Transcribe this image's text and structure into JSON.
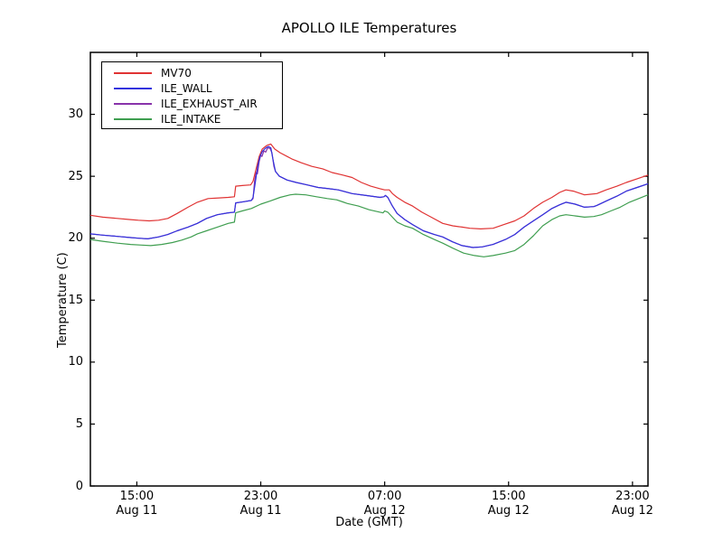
{
  "title": "APOLLO ILE Temperatures",
  "xlabel": "Date (GMT)",
  "ylabel": "Temperature (C)",
  "legend": {
    "items": [
      {
        "label": "MV70",
        "color": "#e03333"
      },
      {
        "label": "ILE_WALL",
        "color": "#3333dd"
      },
      {
        "label": "ILE_EXHAUST_AIR",
        "color": "#8833aa"
      },
      {
        "label": "ILE_INTAKE",
        "color": "#3f9e50"
      }
    ]
  },
  "chart_data": {
    "type": "line",
    "title": "APOLLO ILE Temperatures",
    "xlabel": "Date (GMT)",
    "ylabel": "Temperature (C)",
    "ylim": [
      0,
      35
    ],
    "yticks": [
      0,
      5,
      10,
      15,
      20,
      25,
      30
    ],
    "x_hours_range": [
      0,
      36
    ],
    "xticks": [
      {
        "t": 3,
        "time": "15:00",
        "date": "Aug 11"
      },
      {
        "t": 11,
        "time": "23:00",
        "date": "Aug 11"
      },
      {
        "t": 19,
        "time": "07:00",
        "date": "Aug 12"
      },
      {
        "t": 27,
        "time": "15:00",
        "date": "Aug 12"
      },
      {
        "t": 35,
        "time": "23:00",
        "date": "Aug 12"
      }
    ],
    "grid": false,
    "legend_position": "upper left",
    "series": [
      {
        "name": "MV70",
        "color": "#e03333",
        "points": [
          [
            0,
            21.85
          ],
          [
            0.8,
            21.7
          ],
          [
            1.75,
            21.6
          ],
          [
            2.6,
            21.5
          ],
          [
            3.1,
            21.45
          ],
          [
            3.8,
            21.4
          ],
          [
            4.4,
            21.45
          ],
          [
            5.0,
            21.6
          ],
          [
            5.6,
            22.0
          ],
          [
            6.3,
            22.5
          ],
          [
            6.9,
            22.9
          ],
          [
            7.6,
            23.2
          ],
          [
            8.3,
            23.25
          ],
          [
            8.9,
            23.3
          ],
          [
            9.3,
            23.35
          ],
          [
            9.38,
            24.2
          ],
          [
            9.8,
            24.25
          ],
          [
            10.35,
            24.3
          ],
          [
            10.5,
            24.6
          ],
          [
            10.7,
            25.6
          ],
          [
            10.9,
            26.6
          ],
          [
            11.1,
            27.2
          ],
          [
            11.4,
            27.5
          ],
          [
            11.65,
            27.6
          ],
          [
            11.9,
            27.2
          ],
          [
            12.25,
            26.9
          ],
          [
            12.7,
            26.6
          ],
          [
            13.0,
            26.4
          ],
          [
            13.6,
            26.1
          ],
          [
            14.3,
            25.8
          ],
          [
            15.0,
            25.6
          ],
          [
            15.6,
            25.3
          ],
          [
            16.3,
            25.1
          ],
          [
            16.9,
            24.9
          ],
          [
            17.5,
            24.5
          ],
          [
            18.1,
            24.2
          ],
          [
            18.7,
            24.0
          ],
          [
            19.0,
            23.9
          ],
          [
            19.3,
            23.9
          ],
          [
            19.5,
            23.6
          ],
          [
            19.8,
            23.3
          ],
          [
            20.3,
            22.9
          ],
          [
            20.8,
            22.6
          ],
          [
            21.4,
            22.1
          ],
          [
            22.0,
            21.7
          ],
          [
            22.75,
            21.2
          ],
          [
            23.4,
            21.0
          ],
          [
            24.0,
            20.9
          ],
          [
            24.5,
            20.8
          ],
          [
            25.2,
            20.75
          ],
          [
            26.0,
            20.8
          ],
          [
            26.7,
            21.1
          ],
          [
            27.4,
            21.4
          ],
          [
            28.0,
            21.8
          ],
          [
            28.6,
            22.4
          ],
          [
            29.2,
            22.9
          ],
          [
            29.8,
            23.3
          ],
          [
            30.3,
            23.7
          ],
          [
            30.7,
            23.9
          ],
          [
            31.2,
            23.8
          ],
          [
            31.9,
            23.5
          ],
          [
            32.3,
            23.55
          ],
          [
            32.7,
            23.6
          ],
          [
            33.3,
            23.9
          ],
          [
            34.0,
            24.2
          ],
          [
            34.6,
            24.5
          ],
          [
            35.3,
            24.8
          ],
          [
            36.0,
            25.1
          ]
        ]
      },
      {
        "name": "ILE_WALL",
        "color": "#3333dd",
        "points": [
          [
            0,
            20.35
          ],
          [
            0.8,
            20.25
          ],
          [
            1.75,
            20.15
          ],
          [
            2.6,
            20.05
          ],
          [
            3.1,
            20.0
          ],
          [
            3.7,
            19.95
          ],
          [
            4.4,
            20.1
          ],
          [
            5.0,
            20.3
          ],
          [
            5.6,
            20.6
          ],
          [
            6.3,
            20.9
          ],
          [
            6.9,
            21.2
          ],
          [
            7.5,
            21.6
          ],
          [
            8.2,
            21.9
          ],
          [
            8.9,
            22.05
          ],
          [
            9.3,
            22.1
          ],
          [
            9.38,
            22.85
          ],
          [
            9.9,
            22.95
          ],
          [
            10.4,
            23.05
          ],
          [
            10.5,
            23.3
          ],
          [
            10.65,
            24.5
          ],
          [
            10.8,
            25.8
          ],
          [
            10.95,
            26.6
          ],
          [
            11.1,
            27.0
          ],
          [
            11.25,
            27.2
          ],
          [
            11.4,
            27.35
          ],
          [
            11.5,
            27.4
          ],
          [
            11.65,
            27.3
          ],
          [
            11.8,
            26.3
          ],
          [
            11.95,
            25.4
          ],
          [
            12.2,
            25.0
          ],
          [
            12.7,
            24.7
          ],
          [
            13.3,
            24.5
          ],
          [
            14.0,
            24.3
          ],
          [
            14.7,
            24.1
          ],
          [
            15.4,
            24.0
          ],
          [
            16.0,
            23.9
          ],
          [
            16.9,
            23.6
          ],
          [
            17.8,
            23.45
          ],
          [
            18.7,
            23.3
          ],
          [
            18.95,
            23.35
          ],
          [
            19.05,
            23.45
          ],
          [
            19.2,
            23.3
          ],
          [
            19.5,
            22.6
          ],
          [
            19.8,
            22.0
          ],
          [
            20.3,
            21.5
          ],
          [
            20.8,
            21.1
          ],
          [
            21.5,
            20.6
          ],
          [
            22.2,
            20.3
          ],
          [
            22.75,
            20.1
          ],
          [
            23.4,
            19.7
          ],
          [
            24.0,
            19.4
          ],
          [
            24.7,
            19.25
          ],
          [
            25.3,
            19.3
          ],
          [
            26.0,
            19.5
          ],
          [
            26.8,
            19.9
          ],
          [
            27.4,
            20.3
          ],
          [
            28.0,
            20.9
          ],
          [
            28.6,
            21.4
          ],
          [
            29.2,
            21.9
          ],
          [
            29.8,
            22.4
          ],
          [
            30.3,
            22.7
          ],
          [
            30.7,
            22.9
          ],
          [
            31.3,
            22.75
          ],
          [
            31.9,
            22.5
          ],
          [
            32.5,
            22.55
          ],
          [
            32.7,
            22.65
          ],
          [
            33.3,
            23.0
          ],
          [
            34.0,
            23.4
          ],
          [
            34.6,
            23.8
          ],
          [
            35.3,
            24.1
          ],
          [
            36.0,
            24.4
          ]
        ]
      },
      {
        "name": "ILE_EXHAUST_AIR",
        "color": "#8833aa",
        "points": [
          [
            0,
            20.35
          ],
          [
            0.8,
            20.25
          ],
          [
            1.75,
            20.15
          ],
          [
            2.6,
            20.05
          ],
          [
            3.1,
            20.0
          ],
          [
            3.7,
            19.95
          ],
          [
            4.4,
            20.1
          ],
          [
            5.0,
            20.3
          ],
          [
            5.6,
            20.6
          ],
          [
            6.3,
            20.9
          ],
          [
            6.9,
            21.2
          ],
          [
            7.5,
            21.6
          ],
          [
            8.2,
            21.9
          ],
          [
            8.9,
            22.05
          ],
          [
            9.3,
            22.1
          ],
          [
            9.38,
            22.85
          ],
          [
            9.9,
            22.95
          ],
          [
            10.4,
            23.05
          ],
          [
            10.5,
            23.2
          ],
          [
            10.6,
            24.6
          ],
          [
            10.7,
            25.3
          ],
          [
            10.78,
            25.2
          ],
          [
            10.9,
            26.2
          ],
          [
            11.0,
            26.7
          ],
          [
            11.08,
            26.6
          ],
          [
            11.2,
            27.05
          ],
          [
            11.32,
            26.95
          ],
          [
            11.45,
            27.3
          ],
          [
            11.6,
            27.25
          ],
          [
            11.72,
            26.9
          ],
          [
            11.85,
            25.8
          ],
          [
            11.95,
            25.4
          ],
          [
            12.2,
            25.0
          ],
          [
            12.7,
            24.7
          ],
          [
            13.3,
            24.5
          ],
          [
            14.0,
            24.3
          ],
          [
            14.7,
            24.1
          ],
          [
            15.4,
            24.0
          ],
          [
            16.0,
            23.9
          ],
          [
            16.9,
            23.6
          ],
          [
            17.8,
            23.45
          ],
          [
            18.7,
            23.3
          ],
          [
            18.95,
            23.35
          ],
          [
            19.05,
            23.45
          ],
          [
            19.2,
            23.3
          ],
          [
            19.5,
            22.6
          ],
          [
            19.8,
            22.0
          ],
          [
            20.3,
            21.5
          ],
          [
            20.8,
            21.1
          ],
          [
            21.5,
            20.6
          ],
          [
            22.2,
            20.3
          ],
          [
            22.75,
            20.1
          ],
          [
            23.4,
            19.7
          ],
          [
            24.0,
            19.4
          ],
          [
            24.7,
            19.25
          ],
          [
            25.3,
            19.3
          ],
          [
            26.0,
            19.5
          ],
          [
            26.8,
            19.9
          ],
          [
            27.4,
            20.3
          ],
          [
            28.0,
            20.9
          ],
          [
            28.6,
            21.4
          ],
          [
            29.2,
            21.9
          ],
          [
            29.8,
            22.4
          ],
          [
            30.3,
            22.7
          ],
          [
            30.7,
            22.9
          ],
          [
            31.3,
            22.75
          ],
          [
            31.9,
            22.5
          ],
          [
            32.5,
            22.55
          ],
          [
            32.7,
            22.65
          ],
          [
            33.3,
            23.0
          ],
          [
            34.0,
            23.4
          ],
          [
            34.6,
            23.8
          ],
          [
            35.3,
            24.1
          ],
          [
            36.0,
            24.4
          ]
        ]
      },
      {
        "name": "ILE_INTAKE",
        "color": "#3f9e50",
        "points": [
          [
            0,
            19.9
          ],
          [
            0.8,
            19.75
          ],
          [
            1.75,
            19.6
          ],
          [
            2.6,
            19.5
          ],
          [
            3.3,
            19.45
          ],
          [
            3.9,
            19.4
          ],
          [
            4.6,
            19.5
          ],
          [
            5.3,
            19.65
          ],
          [
            5.9,
            19.85
          ],
          [
            6.5,
            20.1
          ],
          [
            6.9,
            20.35
          ],
          [
            7.5,
            20.6
          ],
          [
            8.2,
            20.9
          ],
          [
            8.9,
            21.2
          ],
          [
            9.3,
            21.3
          ],
          [
            9.38,
            22.05
          ],
          [
            9.8,
            22.2
          ],
          [
            10.4,
            22.4
          ],
          [
            11.0,
            22.75
          ],
          [
            11.6,
            23.0
          ],
          [
            12.25,
            23.3
          ],
          [
            12.9,
            23.5
          ],
          [
            13.25,
            23.55
          ],
          [
            13.9,
            23.5
          ],
          [
            14.6,
            23.35
          ],
          [
            15.3,
            23.2
          ],
          [
            15.9,
            23.1
          ],
          [
            16.6,
            22.8
          ],
          [
            17.3,
            22.6
          ],
          [
            18.0,
            22.3
          ],
          [
            18.7,
            22.1
          ],
          [
            18.9,
            22.05
          ],
          [
            19.0,
            22.2
          ],
          [
            19.2,
            22.1
          ],
          [
            19.5,
            21.7
          ],
          [
            19.8,
            21.3
          ],
          [
            20.3,
            21.0
          ],
          [
            20.8,
            20.8
          ],
          [
            21.5,
            20.3
          ],
          [
            22.2,
            19.9
          ],
          [
            22.75,
            19.6
          ],
          [
            23.4,
            19.2
          ],
          [
            24.1,
            18.8
          ],
          [
            24.8,
            18.6
          ],
          [
            25.4,
            18.5
          ],
          [
            26.0,
            18.6
          ],
          [
            26.8,
            18.8
          ],
          [
            27.4,
            19.0
          ],
          [
            28.0,
            19.5
          ],
          [
            28.6,
            20.2
          ],
          [
            29.2,
            21.0
          ],
          [
            29.8,
            21.5
          ],
          [
            30.3,
            21.8
          ],
          [
            30.7,
            21.9
          ],
          [
            31.3,
            21.8
          ],
          [
            31.9,
            21.7
          ],
          [
            32.5,
            21.75
          ],
          [
            33.0,
            21.9
          ],
          [
            33.6,
            22.2
          ],
          [
            34.2,
            22.5
          ],
          [
            34.8,
            22.9
          ],
          [
            35.4,
            23.2
          ],
          [
            36.0,
            23.5
          ]
        ]
      }
    ]
  }
}
